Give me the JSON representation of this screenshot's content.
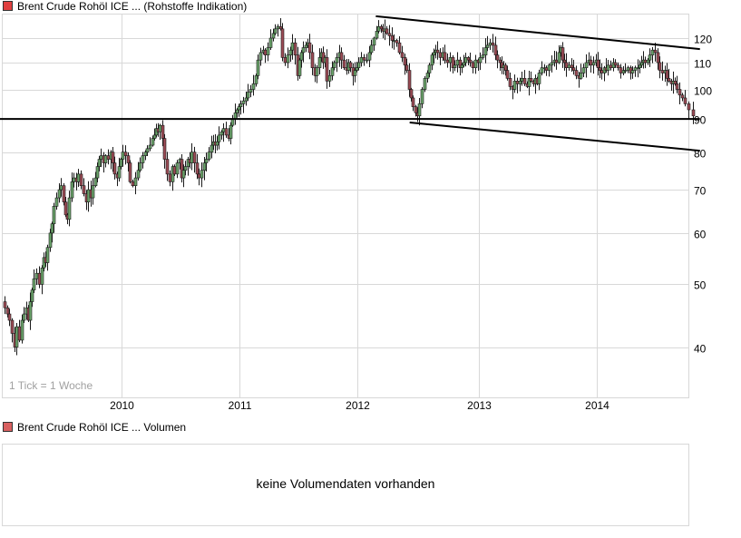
{
  "header": {
    "legend_icon": "red-square-icon",
    "legend_color": "#e04040",
    "title": "Brent Crude Rohöl ICE ... (Rohstoffe Indikation)"
  },
  "chart_data": {
    "type": "candlestick",
    "title": "Brent Crude Rohöl ICE ... (Rohstoffe Indikation)",
    "interval_note": "1 Tick = 1 Woche",
    "y_scale": "log",
    "ylim": [
      33.5,
      131.5
    ],
    "y_ticks": [
      120,
      110,
      100,
      90,
      80,
      70,
      60,
      50,
      40
    ],
    "x_ticks": [
      "2010",
      "2011",
      "2012",
      "2013",
      "2014"
    ],
    "grid": true,
    "colors": {
      "up": "#6aa36a",
      "down": "#9c4b55",
      "outline": "#1a1a1a",
      "grid": "#d8d8d8",
      "trendline": "#000000"
    },
    "first_open": 47,
    "months": [
      {
        "month": "2009-01",
        "weekly_close": [
          46,
          45,
          44,
          42
        ]
      },
      {
        "month": "2009-02",
        "weekly_close": [
          40,
          43,
          41,
          44
        ]
      },
      {
        "month": "2009-03",
        "weekly_close": [
          45,
          46,
          44,
          47,
          49
        ]
      },
      {
        "month": "2009-04",
        "weekly_close": [
          51,
          52,
          50,
          53
        ]
      },
      {
        "month": "2009-05",
        "weekly_close": [
          55,
          54,
          57,
          60,
          62
        ]
      },
      {
        "month": "2009-06",
        "weekly_close": [
          66,
          68,
          70,
          71
        ]
      },
      {
        "month": "2009-07",
        "weekly_close": [
          67,
          64,
          63,
          68,
          72
        ]
      },
      {
        "month": "2009-08",
        "weekly_close": [
          73,
          72,
          74,
          71
        ]
      },
      {
        "month": "2009-09",
        "weekly_close": [
          69,
          67,
          70,
          68
        ]
      },
      {
        "month": "2009-10",
        "weekly_close": [
          71,
          73,
          76,
          78,
          79
        ]
      },
      {
        "month": "2009-11",
        "weekly_close": [
          77,
          79,
          78,
          80
        ]
      },
      {
        "month": "2009-12",
        "weekly_close": [
          77,
          74,
          73,
          76,
          78
        ]
      },
      {
        "month": "2010-01",
        "weekly_close": [
          80,
          79,
          77,
          72
        ]
      },
      {
        "month": "2010-02",
        "weekly_close": [
          71,
          73,
          75,
          77
        ]
      },
      {
        "month": "2010-03",
        "weekly_close": [
          79,
          80,
          81,
          82
        ]
      },
      {
        "month": "2010-04",
        "weekly_close": [
          84,
          85,
          87,
          86,
          88
        ]
      },
      {
        "month": "2010-05",
        "weekly_close": [
          84,
          78,
          74,
          72
        ]
      },
      {
        "month": "2010-06",
        "weekly_close": [
          76,
          74,
          77,
          78
        ]
      },
      {
        "month": "2010-07",
        "weekly_close": [
          73,
          75,
          76,
          78,
          77
        ]
      },
      {
        "month": "2010-08",
        "weekly_close": [
          80,
          77,
          74,
          73
        ]
      },
      {
        "month": "2010-09",
        "weekly_close": [
          75,
          77,
          78,
          80
        ]
      },
      {
        "month": "2010-10",
        "weekly_close": [
          82,
          83,
          82,
          83,
          85
        ]
      },
      {
        "month": "2010-11",
        "weekly_close": [
          86,
          87,
          85,
          84
        ]
      },
      {
        "month": "2010-12",
        "weekly_close": [
          88,
          90,
          92,
          93,
          94
        ]
      },
      {
        "month": "2011-01",
        "weekly_close": [
          95,
          96,
          97,
          99
        ]
      },
      {
        "month": "2011-02",
        "weekly_close": [
          100,
          102,
          105,
          111
        ]
      },
      {
        "month": "2011-03",
        "weekly_close": [
          114,
          115,
          113,
          116
        ]
      },
      {
        "month": "2011-04",
        "weekly_close": [
          120,
          122,
          124,
          125
        ]
      },
      {
        "month": "2011-05",
        "weekly_close": [
          124,
          112,
          110,
          113
        ]
      },
      {
        "month": "2011-06",
        "weekly_close": [
          115,
          118,
          113,
          105
        ]
      },
      {
        "month": "2011-07",
        "weekly_close": [
          111,
          114,
          116,
          117,
          118
        ]
      },
      {
        "month": "2011-08",
        "weekly_close": [
          114,
          108,
          105,
          108
        ]
      },
      {
        "month": "2011-09",
        "weekly_close": [
          112,
          114,
          110,
          112,
          103
        ]
      },
      {
        "month": "2011-10",
        "weekly_close": [
          105,
          108,
          110,
          112
        ]
      },
      {
        "month": "2011-11",
        "weekly_close": [
          114,
          111,
          108,
          107
        ]
      },
      {
        "month": "2011-12",
        "weekly_close": [
          110,
          108,
          105,
          107,
          108
        ]
      },
      {
        "month": "2012-01",
        "weekly_close": [
          110,
          112,
          111,
          111
        ]
      },
      {
        "month": "2012-02",
        "weekly_close": [
          114,
          117,
          120,
          123
        ]
      },
      {
        "month": "2012-03",
        "weekly_close": [
          125,
          124,
          123,
          124,
          122
        ]
      },
      {
        "month": "2012-04",
        "weekly_close": [
          121,
          119,
          119,
          118
        ]
      },
      {
        "month": "2012-05",
        "weekly_close": [
          114,
          112,
          109,
          107
        ]
      },
      {
        "month": "2012-06",
        "weekly_close": [
          100,
          97,
          94,
          92,
          91
        ]
      },
      {
        "month": "2012-07",
        "weekly_close": [
          95,
          100,
          104,
          106
        ]
      },
      {
        "month": "2012-08",
        "weekly_close": [
          109,
          113,
          114,
          115,
          114
        ]
      },
      {
        "month": "2012-09",
        "weekly_close": [
          112,
          114,
          111,
          110
        ]
      },
      {
        "month": "2012-10",
        "weekly_close": [
          112,
          108,
          109,
          111
        ]
      },
      {
        "month": "2012-11",
        "weekly_close": [
          108,
          109,
          110,
          112,
          111
        ]
      },
      {
        "month": "2012-12",
        "weekly_close": [
          110,
          108,
          111,
          110
        ]
      },
      {
        "month": "2013-01",
        "weekly_close": [
          112,
          113,
          116,
          117
        ]
      },
      {
        "month": "2013-02",
        "weekly_close": [
          118,
          117,
          113,
          111
        ]
      },
      {
        "month": "2013-03",
        "weekly_close": [
          110,
          108,
          109,
          107,
          104
        ]
      },
      {
        "month": "2013-04",
        "weekly_close": [
          101,
          100,
          103,
          102
        ]
      },
      {
        "month": "2013-05",
        "weekly_close": [
          103,
          104,
          102,
          101
        ]
      },
      {
        "month": "2013-06",
        "weekly_close": [
          104,
          103,
          102,
          104,
          102
        ]
      },
      {
        "month": "2013-07",
        "weekly_close": [
          106,
          108,
          108,
          107
        ]
      },
      {
        "month": "2013-08",
        "weekly_close": [
          109,
          110,
          111,
          110
        ]
      },
      {
        "month": "2013-09",
        "weekly_close": [
          114,
          116,
          111,
          110,
          108
        ]
      },
      {
        "month": "2013-10",
        "weekly_close": [
          109,
          108,
          107,
          105
        ]
      },
      {
        "month": "2013-11",
        "weekly_close": [
          104,
          106,
          108,
          110
        ]
      },
      {
        "month": "2013-12",
        "weekly_close": [
          111,
          109,
          110,
          111
        ]
      },
      {
        "month": "2014-01",
        "weekly_close": [
          108,
          107,
          106,
          108,
          107
        ]
      },
      {
        "month": "2014-02",
        "weekly_close": [
          109,
          108,
          110,
          109
        ]
      },
      {
        "month": "2014-03",
        "weekly_close": [
          108,
          106,
          107,
          107
        ]
      },
      {
        "month": "2014-04",
        "weekly_close": [
          108,
          106,
          107,
          108
        ]
      },
      {
        "month": "2014-05",
        "weekly_close": [
          108,
          109,
          110,
          111,
          110
        ]
      },
      {
        "month": "2014-06",
        "weekly_close": [
          111,
          113,
          115,
          114
        ]
      },
      {
        "month": "2014-07",
        "weekly_close": [
          110,
          107,
          106,
          107
        ]
      },
      {
        "month": "2014-08",
        "weekly_close": [
          104,
          103,
          102,
          103,
          102
        ]
      },
      {
        "month": "2014-09",
        "weekly_close": [
          100,
          98,
          97,
          95
        ]
      },
      {
        "month": "2014-10",
        "weekly_close": [
          93,
          91
        ]
      }
    ],
    "trendlines": [
      {
        "name": "upper-channel",
        "from": [
          "2012-02-26",
          129.7
        ],
        "to": [
          "2014-11-15",
          115.4
        ]
      },
      {
        "name": "support-90",
        "from": [
          "2008-12-20",
          90
        ],
        "to": [
          "2014-11-15",
          90
        ]
      },
      {
        "name": "lower-channel",
        "from": [
          "2012-06-06",
          88.9
        ],
        "to": [
          "2014-11-15",
          80.4
        ]
      }
    ]
  },
  "volume": {
    "legend_icon": "red-square-icon",
    "legend_color": "#d86060",
    "title": "Brent Crude Rohöl ICE ... Volumen",
    "empty_message": "keine Volumendaten vorhanden"
  }
}
